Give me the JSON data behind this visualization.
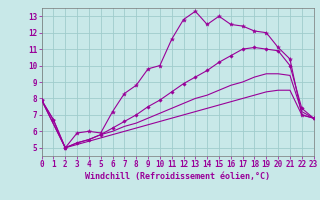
{
  "xlabel": "Windchill (Refroidissement éolien,°C)",
  "xlim": [
    0,
    23
  ],
  "ylim": [
    4.5,
    13.5
  ],
  "xticks": [
    0,
    1,
    2,
    3,
    4,
    5,
    6,
    7,
    8,
    9,
    10,
    11,
    12,
    13,
    14,
    15,
    16,
    17,
    18,
    19,
    20,
    21,
    22,
    23
  ],
  "yticks": [
    5,
    6,
    7,
    8,
    9,
    10,
    11,
    12,
    13
  ],
  "bg_color": "#c8e8e8",
  "line_color": "#990099",
  "grid_color": "#a0cccc",
  "line1_x": [
    0,
    1,
    2,
    3,
    4,
    5,
    6,
    7,
    8,
    9,
    10,
    11,
    12,
    13,
    14,
    15,
    16,
    17,
    18,
    19,
    20,
    21,
    22,
    23
  ],
  "line1_y": [
    7.9,
    6.7,
    5.0,
    5.9,
    6.0,
    5.9,
    7.2,
    8.3,
    8.8,
    9.8,
    10.0,
    11.6,
    12.8,
    13.3,
    12.5,
    13.0,
    12.5,
    12.4,
    12.1,
    12.0,
    11.1,
    10.4,
    7.0,
    6.8
  ],
  "line2_x": [
    0,
    1,
    2,
    3,
    4,
    5,
    6,
    7,
    8,
    9,
    10,
    11,
    12,
    13,
    14,
    15,
    16,
    17,
    18,
    19,
    20,
    21,
    22,
    23
  ],
  "line2_y": [
    7.9,
    6.7,
    5.0,
    5.3,
    5.5,
    5.8,
    6.2,
    6.6,
    7.0,
    7.5,
    7.9,
    8.4,
    8.9,
    9.3,
    9.7,
    10.2,
    10.6,
    11.0,
    11.1,
    11.0,
    10.9,
    10.0,
    7.4,
    6.8
  ],
  "line3_x": [
    0,
    2,
    3,
    4,
    5,
    6,
    7,
    8,
    9,
    10,
    11,
    12,
    13,
    14,
    15,
    16,
    17,
    18,
    19,
    20,
    21,
    22,
    23
  ],
  "line3_y": [
    7.9,
    5.0,
    5.3,
    5.5,
    5.8,
    6.0,
    6.3,
    6.5,
    6.8,
    7.1,
    7.4,
    7.7,
    8.0,
    8.2,
    8.5,
    8.8,
    9.0,
    9.3,
    9.5,
    9.5,
    9.4,
    7.2,
    6.8
  ],
  "line4_x": [
    0,
    2,
    3,
    4,
    5,
    6,
    7,
    8,
    9,
    10,
    11,
    12,
    13,
    14,
    15,
    16,
    17,
    18,
    19,
    20,
    21,
    22,
    23
  ],
  "line4_y": [
    7.9,
    5.0,
    5.2,
    5.4,
    5.6,
    5.8,
    6.0,
    6.2,
    6.4,
    6.6,
    6.8,
    7.0,
    7.2,
    7.4,
    7.6,
    7.8,
    8.0,
    8.2,
    8.4,
    8.5,
    8.5,
    7.0,
    6.8
  ]
}
